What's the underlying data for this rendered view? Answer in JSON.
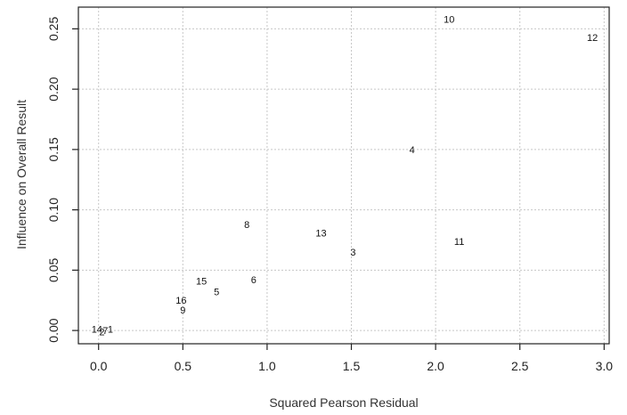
{
  "chart_data": {
    "type": "scatter",
    "xlabel": "Squared Pearson Residual",
    "ylabel": "Influence on Overall Result",
    "xlim": [
      -0.12,
      3.03
    ],
    "ylim": [
      -0.011,
      0.268
    ],
    "x_ticks": [
      "0.0",
      "0.5",
      "1.0",
      "1.5",
      "2.0",
      "2.5",
      "3.0"
    ],
    "y_ticks": [
      "0.00",
      "0.05",
      "0.10",
      "0.15",
      "0.20",
      "0.25"
    ],
    "grid": true,
    "marker": "text-label",
    "points": [
      {
        "label": "10",
        "x": 2.08,
        "y": 0.258
      },
      {
        "label": "12",
        "x": 2.93,
        "y": 0.243
      },
      {
        "label": "4",
        "x": 1.86,
        "y": 0.15
      },
      {
        "label": "8",
        "x": 0.88,
        "y": 0.088
      },
      {
        "label": "13",
        "x": 1.32,
        "y": 0.081
      },
      {
        "label": "11",
        "x": 2.14,
        "y": 0.074
      },
      {
        "label": "3",
        "x": 1.51,
        "y": 0.065
      },
      {
        "label": "15",
        "x": 0.61,
        "y": 0.041
      },
      {
        "label": "6",
        "x": 0.92,
        "y": 0.042
      },
      {
        "label": "5",
        "x": 0.7,
        "y": 0.032
      },
      {
        "label": "16",
        "x": 0.49,
        "y": 0.025
      },
      {
        "label": "9",
        "x": 0.5,
        "y": 0.017
      },
      {
        "label": "14",
        "x": -0.01,
        "y": 0.001
      },
      {
        "label": "2",
        "x": 0.02,
        "y": -0.001
      },
      {
        "label": "7",
        "x": 0.04,
        "y": 0.0
      },
      {
        "label": "1",
        "x": 0.07,
        "y": 0.001
      }
    ]
  }
}
